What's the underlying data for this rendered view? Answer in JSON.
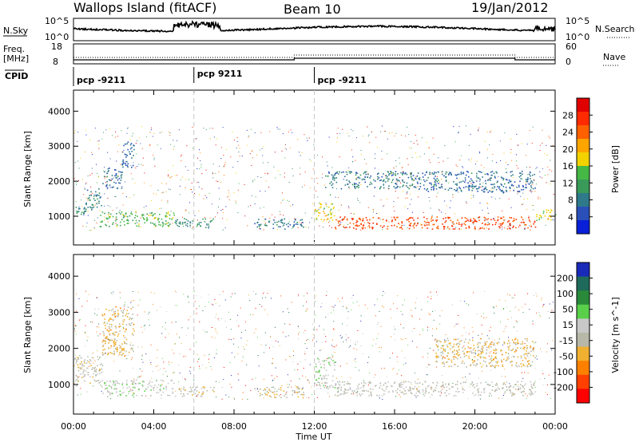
{
  "header": {
    "station": "Wallops Island (fitACF)",
    "beam": "Beam 10",
    "date": "19/Jan/2012"
  },
  "top_panels": {
    "nsky_label": "N.Sky",
    "nsky_ticks": [
      "10^5",
      "10^0"
    ],
    "nsearch_label": "N.Search",
    "nsearch_ticks": [
      "10^5",
      "10^0"
    ],
    "freq_label": "Freq.",
    "freq_unit": "[MHz]",
    "freq_ticks": [
      "18",
      "8"
    ],
    "nave_label": "Nave",
    "nave_ticks": [
      "60",
      "0"
    ],
    "cpid_label": "CPID",
    "cpid_segments": [
      {
        "label": "pcp -9211",
        "start_h": 0
      },
      {
        "label": "pcp 9211",
        "start_h": 6
      },
      {
        "label": "pcp -9211",
        "start_h": 12
      }
    ]
  },
  "colors": {
    "power_scale": [
      "#0a1fd8",
      "#2a4fb8",
      "#2e7a8a",
      "#3a9a5a",
      "#45b845",
      "#f2d200",
      "#ffa500",
      "#ff6000",
      "#ff2a00",
      "#e00000"
    ],
    "velocity_scale": [
      "#1a2ab8",
      "#1f6a5a",
      "#2a8a3a",
      "#5ad04a",
      "#c8c8c8",
      "#b8b8a8",
      "#f0b030",
      "#ff8000",
      "#ff4000",
      "#ff0000"
    ]
  },
  "chart_data": [
    {
      "type": "heatmap",
      "name": "power",
      "xlabel": "Time UT",
      "ylabel": "Slant Range [km]",
      "x_ticks": [
        "00:00",
        "04:00",
        "08:00",
        "12:00",
        "16:00",
        "20:00",
        "00:00"
      ],
      "xlim_hours": [
        0,
        24
      ],
      "ylim": [
        180,
        4600
      ],
      "y_ticks": [
        1000,
        2000,
        3000,
        4000
      ],
      "colorbar_label": "Power [dB]",
      "colorbar_ticks": [
        4,
        8,
        12,
        16,
        20,
        24,
        28
      ],
      "clim": [
        0,
        32
      ],
      "echo_bands": [
        {
          "t0": 0.0,
          "t1": 0.6,
          "r0": 1050,
          "r1": 1300,
          "value": 10
        },
        {
          "t0": 0.6,
          "t1": 1.4,
          "r0": 1200,
          "r1": 1800,
          "value": 8
        },
        {
          "t0": 1.4,
          "t1": 2.4,
          "r0": 1800,
          "r1": 2400,
          "value": 7
        },
        {
          "t0": 2.4,
          "t1": 3.0,
          "r0": 2400,
          "r1": 3200,
          "value": 6
        },
        {
          "t0": 1.3,
          "t1": 5.0,
          "r0": 720,
          "r1": 1150,
          "value": 14
        },
        {
          "t0": 5.0,
          "t1": 7.0,
          "r0": 680,
          "r1": 950,
          "value": 10
        },
        {
          "t0": 9.0,
          "t1": 11.5,
          "r0": 650,
          "r1": 950,
          "value": 8
        },
        {
          "t0": 12.0,
          "t1": 13.0,
          "r0": 900,
          "r1": 1400,
          "value": 18
        },
        {
          "t0": 13.0,
          "t1": 23.0,
          "r0": 650,
          "r1": 1000,
          "value": 26
        },
        {
          "t0": 23.0,
          "t1": 24.0,
          "r0": 900,
          "r1": 1200,
          "value": 16
        },
        {
          "t0": 12.5,
          "t1": 17.0,
          "r0": 1800,
          "r1": 2300,
          "value": 8
        },
        {
          "t0": 17.0,
          "t1": 23.0,
          "r0": 1700,
          "r1": 2300,
          "value": 7
        }
      ]
    },
    {
      "type": "heatmap",
      "name": "velocity",
      "xlabel": "Time UT",
      "ylabel": "Slant Range [km]",
      "x_ticks": [
        "00:00",
        "04:00",
        "08:00",
        "12:00",
        "16:00",
        "20:00",
        "00:00"
      ],
      "xlim_hours": [
        0,
        24
      ],
      "ylim": [
        180,
        4600
      ],
      "y_ticks": [
        1000,
        2000,
        3000,
        4000
      ],
      "colorbar_label": "Velocity [m s^-1]",
      "colorbar_ticks": [
        200,
        100,
        50,
        15,
        -15,
        -50,
        -100,
        -200
      ],
      "clim": [
        -250,
        250
      ],
      "echo_bands": [
        {
          "t0": 0.0,
          "t1": 1.4,
          "r0": 1050,
          "r1": 1800,
          "value": -20
        },
        {
          "t0": 1.4,
          "t1": 3.0,
          "r0": 1800,
          "r1": 3200,
          "value": -60
        },
        {
          "t0": 1.3,
          "t1": 5.0,
          "r0": 700,
          "r1": 1150,
          "value": 30
        },
        {
          "t0": 5.0,
          "t1": 7.0,
          "r0": 680,
          "r1": 950,
          "value": -30
        },
        {
          "t0": 9.0,
          "t1": 11.5,
          "r0": 650,
          "r1": 950,
          "value": -40
        },
        {
          "t0": 12.0,
          "t1": 13.0,
          "r0": 900,
          "r1": 1800,
          "value": 30
        },
        {
          "t0": 13.0,
          "t1": 23.0,
          "r0": 700,
          "r1": 1100,
          "value": -5
        },
        {
          "t0": 18.0,
          "t1": 23.0,
          "r0": 1500,
          "r1": 2300,
          "value": -60
        }
      ]
    }
  ]
}
